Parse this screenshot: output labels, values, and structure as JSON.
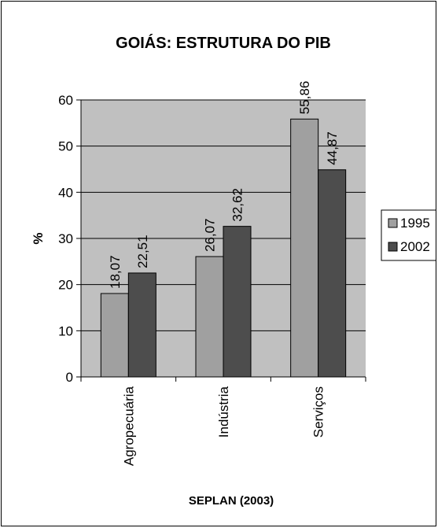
{
  "chart_data": {
    "type": "bar",
    "title": "GOIÁS: ESTRUTURA DO PIB",
    "xlabel": "SEPLAN (2003)",
    "ylabel": "%",
    "categories": [
      "Agropecuária",
      "Indústria",
      "Serviços"
    ],
    "series": [
      {
        "name": "1995",
        "values": [
          18.07,
          26.07,
          55.86
        ],
        "labels": [
          "18,07",
          "26,07",
          "55,86"
        ],
        "color": "#a0a0a0"
      },
      {
        "name": "2002",
        "values": [
          22.51,
          32.62,
          44.87
        ],
        "labels": [
          "22,51",
          "32,62",
          "44,87"
        ],
        "color": "#4d4d4d"
      }
    ],
    "ylim": [
      0,
      60
    ],
    "yticks": [
      0,
      10,
      20,
      30,
      40,
      50,
      60
    ],
    "grid": true,
    "plot_background": "#c0c0c0",
    "legend": "right"
  }
}
